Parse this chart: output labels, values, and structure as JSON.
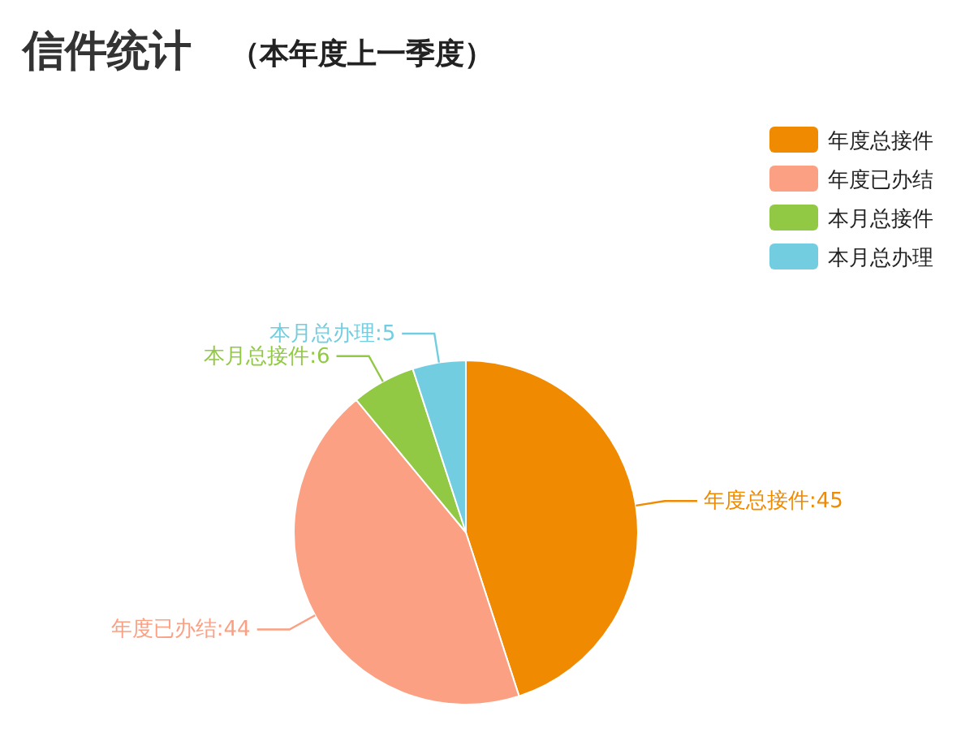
{
  "chart_data": {
    "type": "pie",
    "title": "信件统计",
    "subtitle": "（本年度上一季度）",
    "categories": [
      "年度总接件",
      "年度已办结",
      "本月总接件",
      "本月总办理"
    ],
    "values": [
      45,
      44,
      6,
      5
    ],
    "colors": [
      "#f08a00",
      "#fba083",
      "#91c945",
      "#72cde0"
    ],
    "value_labels": [
      ":45",
      ":44",
      ":6",
      ":5"
    ],
    "legend": "top right"
  }
}
